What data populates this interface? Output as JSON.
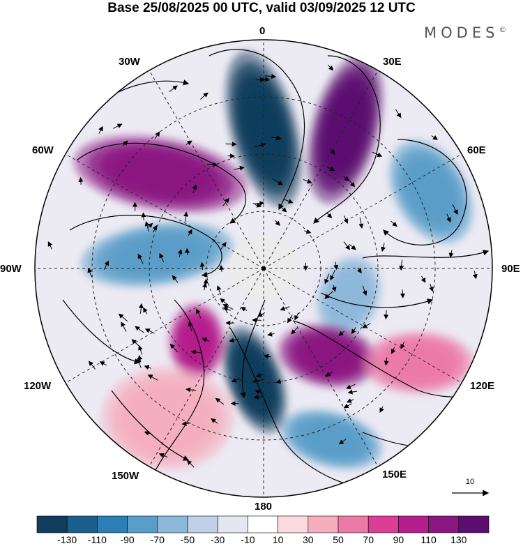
{
  "title": "Base 25/08/2025 00 UTC, valid 03/09/2025 12 UTC",
  "brand": "MODES",
  "brand_mark": "©",
  "longitude_labels": {
    "lon_0": "0",
    "lon_30e": "30E",
    "lon_60e": "60E",
    "lon_90e": "90E",
    "lon_120e": "120E",
    "lon_150e": "150E",
    "lon_180": "180",
    "lon_150w": "150W",
    "lon_120w": "120W",
    "lon_90w": "90W",
    "lon_60w": "60W",
    "lon_30w": "30W"
  },
  "vector_scale": {
    "label": "10"
  },
  "colorbar": {
    "ticks": [
      "-130",
      "-110",
      "-90",
      "-70",
      "-50",
      "-30",
      "-10",
      "10",
      "30",
      "50",
      "70",
      "90",
      "110",
      "130"
    ],
    "colors": [
      "#103d5c",
      "#1a5f8e",
      "#2c7fb4",
      "#5a9dc8",
      "#8eb8da",
      "#bfd0e7",
      "#e4e6f1",
      "#ffffff",
      "#fbdbe0",
      "#f5aebe",
      "#ec7aa7",
      "#dc3d97",
      "#b51f8c",
      "#8a1781",
      "#5c0f70"
    ]
  },
  "anomaly_centers": [
    {
      "value": -130,
      "color": "#103d5c"
    },
    {
      "value": 130,
      "color": "#5c0f70"
    },
    {
      "value": -70,
      "color": "#5a9dc8"
    },
    {
      "value": 110,
      "color": "#8a1781"
    },
    {
      "value": -70,
      "color": "#5a9dc8"
    },
    {
      "value": -50,
      "color": "#8eb8da"
    },
    {
      "value": 110,
      "color": "#8a1781"
    },
    {
      "value": -130,
      "color": "#103d5c"
    },
    {
      "value": 90,
      "color": "#b51f8c"
    },
    {
      "value": -70,
      "color": "#5a9dc8"
    },
    {
      "value": 50,
      "color": "#f5aebe"
    },
    {
      "value": 70,
      "color": "#ec7aa7"
    }
  ]
}
